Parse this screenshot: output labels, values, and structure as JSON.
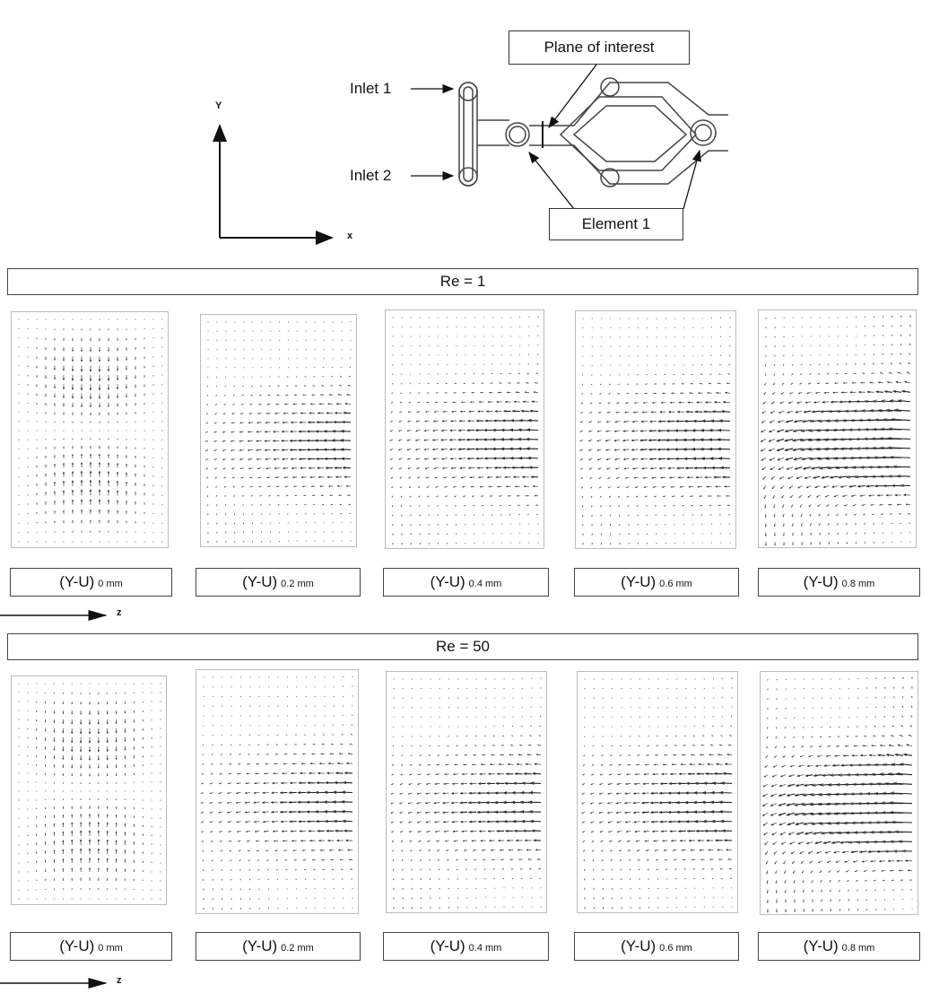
{
  "schematic": {
    "plane_label": "Plane of interest",
    "element_label": "Element 1",
    "inlet1_label": "Inlet 1",
    "inlet2_label": "Inlet 2",
    "axis_y": "Y",
    "axis_x": "x"
  },
  "rows": [
    {
      "title": "Re = 1",
      "axis_z": "z",
      "panels": [
        {
          "main": "(Y-U)",
          "sub": "0 mm",
          "pattern": "vertical",
          "strength": 0.7
        },
        {
          "main": "(Y-U)",
          "sub": "0.2 mm",
          "pattern": "vortex",
          "strength": 0.65
        },
        {
          "main": "(Y-U)",
          "sub": "0.4 mm",
          "pattern": "vortex",
          "strength": 0.75
        },
        {
          "main": "(Y-U)",
          "sub": "0.6 mm",
          "pattern": "vortex",
          "strength": 0.8
        },
        {
          "main": "(Y-U)",
          "sub": "0.8 mm",
          "pattern": "strong",
          "strength": 1.0
        }
      ]
    },
    {
      "title": "Re = 50",
      "axis_z": "z",
      "panels": [
        {
          "main": "(Y-U)",
          "sub": "0 mm",
          "pattern": "vertical",
          "strength": 0.65
        },
        {
          "main": "(Y-U)",
          "sub": "0.2 mm",
          "pattern": "vortex",
          "strength": 0.7
        },
        {
          "main": "(Y-U)",
          "sub": "0.4 mm",
          "pattern": "vortex",
          "strength": 0.75
        },
        {
          "main": "(Y-U)",
          "sub": "0.6 mm",
          "pattern": "vortex",
          "strength": 0.8
        },
        {
          "main": "(Y-U)",
          "sub": "0.8 mm",
          "pattern": "strong",
          "strength": 1.0
        }
      ]
    }
  ]
}
